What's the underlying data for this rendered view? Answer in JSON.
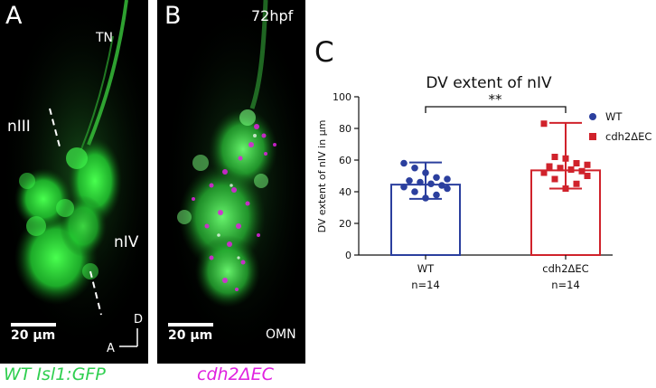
{
  "panel_a": {
    "letter": "A",
    "labels": {
      "tn": "TN",
      "niii": "nIII",
      "niv": "nIV"
    },
    "scale_bar": "20 μm",
    "axes": {
      "dorsal": "D",
      "anterior": "A"
    },
    "caption": "WT Isl1:GFP"
  },
  "panel_b": {
    "letter": "B",
    "stage": "72hpf",
    "labels": {
      "omn": "OMN"
    },
    "scale_bar": "20 μm",
    "caption": "cdh2ΔEC"
  },
  "colors": {
    "wt": "#2b3f9e",
    "mutant": "#d0222b",
    "gfp": "#2fcf4f",
    "magenta": "#e020e0"
  },
  "chart_data": {
    "type": "bar",
    "letter": "C",
    "title": "DV extent of nIV",
    "ylabel": "DV extent of nIV in µm",
    "ylim": [
      0,
      100
    ],
    "yticks": [
      0,
      20,
      40,
      60,
      80,
      100
    ],
    "categories": [
      "WT",
      "cdh2ΔEC"
    ],
    "counts": [
      "n=14",
      "n=14"
    ],
    "significance": "**",
    "legend_position": "right",
    "series": [
      {
        "name": "WT",
        "color": "#2b3f9e",
        "marker": "circle",
        "mean": 44.5,
        "error": [
          35.5,
          58.5
        ],
        "points": [
          58,
          55,
          52,
          49,
          48,
          47,
          46,
          45,
          44,
          43,
          42,
          40,
          38,
          36
        ]
      },
      {
        "name": "cdh2ΔEC",
        "color": "#d0222b",
        "marker": "square",
        "mean": 53.5,
        "error": [
          42,
          83.5
        ],
        "points": [
          83,
          62,
          61,
          58,
          57,
          56,
          55,
          54,
          53,
          52,
          50,
          48,
          45,
          42
        ]
      }
    ]
  }
}
